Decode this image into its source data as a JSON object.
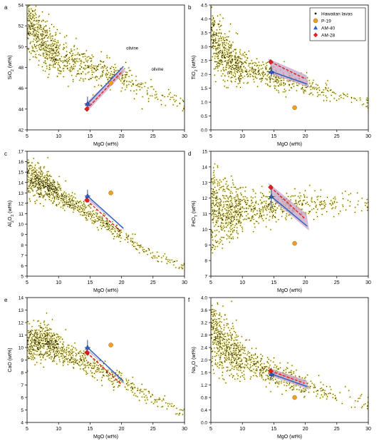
{
  "chart_data": [
    {
      "type": "scatter",
      "panel_label": "a",
      "xlabel": "MgO (wt%)",
      "ylabel": "SiO2 (wt%)",
      "xlim": [
        5,
        30
      ],
      "ylim": [
        42,
        54
      ],
      "xticks": [
        5,
        10,
        15,
        20,
        25,
        30
      ],
      "yticks": [
        42,
        44,
        46,
        48,
        50,
        52,
        54
      ],
      "cloud": [
        [
          5,
          52.0,
          0.15
        ],
        [
          6,
          51.6,
          0.15
        ],
        [
          7,
          51.0,
          0.14
        ],
        [
          8,
          50.2,
          0.14
        ],
        [
          9,
          49.6,
          0.13
        ],
        [
          10,
          49.0,
          0.12
        ],
        [
          12,
          48.6,
          0.11
        ],
        [
          14,
          48.2,
          0.1
        ],
        [
          16,
          47.9,
          0.08
        ],
        [
          18,
          47.4,
          0.07
        ],
        [
          20,
          47.0,
          0.06
        ],
        [
          22,
          46.6,
          0.05
        ],
        [
          25,
          45.6,
          0.04
        ],
        [
          30,
          44.2,
          0.02
        ]
      ],
      "cloud_spread": [
        [
          5,
          2.8
        ],
        [
          8,
          2.8
        ],
        [
          12,
          2.2
        ],
        [
          18,
          1.5
        ],
        [
          25,
          1.2
        ],
        [
          30,
          1.0
        ]
      ],
      "p19": [
        18.3,
        46.5
      ],
      "am40": [
        14.6,
        44.5
      ],
      "am40_err": 0.7,
      "am28": [
        14.5,
        44.0
      ],
      "line_am40": [
        [
          14.6,
          44.5
        ],
        [
          20.3,
          48.1
        ]
      ],
      "line_am28": [
        [
          14.5,
          44.0
        ],
        [
          19.9,
          47.5
        ]
      ],
      "band_halfwidth": 0.45,
      "annotations": [
        {
          "text": "olivine",
          "x": 21.7,
          "y": 49.7
        },
        {
          "text": "olivine",
          "x": 25.7,
          "y": 47.7
        }
      ]
    },
    {
      "type": "scatter",
      "panel_label": "b",
      "xlabel": "MgO (wt%)",
      "ylabel": "TiO2 (wt%)",
      "xlim": [
        5,
        30
      ],
      "ylim": [
        0,
        4.5
      ],
      "xticks": [
        5,
        10,
        15,
        20,
        25,
        30
      ],
      "yticks": [
        0,
        0.5,
        1.0,
        1.5,
        2.0,
        2.5,
        3.0,
        3.5,
        4.0,
        4.5
      ],
      "cloud": [
        [
          5,
          3.5,
          0.17
        ],
        [
          6,
          3.05,
          0.16
        ],
        [
          7,
          2.7,
          0.15
        ],
        [
          8,
          2.5,
          0.14
        ],
        [
          9,
          2.35,
          0.13
        ],
        [
          10,
          2.25,
          0.12
        ],
        [
          12,
          2.1,
          0.11
        ],
        [
          14,
          2.0,
          0.1
        ],
        [
          16,
          1.85,
          0.08
        ],
        [
          18,
          1.7,
          0.06
        ],
        [
          20,
          1.55,
          0.05
        ],
        [
          22,
          1.45,
          0.04
        ],
        [
          25,
          1.25,
          0.03
        ],
        [
          30,
          0.95,
          0.02
        ]
      ],
      "cloud_spread": [
        [
          5,
          1.4
        ],
        [
          8,
          0.9
        ],
        [
          12,
          0.6
        ],
        [
          18,
          0.45
        ],
        [
          25,
          0.35
        ],
        [
          30,
          0.3
        ]
      ],
      "p19": [
        18.3,
        0.8
      ],
      "am40": [
        14.6,
        2.1
      ],
      "am40_err": 0.18,
      "am28": [
        14.5,
        2.45
      ],
      "line_am40": [
        [
          14.6,
          2.1
        ],
        [
          20.3,
          1.65
        ]
      ],
      "line_am28": [
        [
          14.5,
          2.45
        ],
        [
          19.9,
          1.85
        ]
      ],
      "band_halfwidth": 0.12
    },
    {
      "type": "scatter",
      "panel_label": "c",
      "xlabel": "MgO (wt%)",
      "ylabel": "Al2O3 (wt%)",
      "xlim": [
        5,
        30
      ],
      "ylim": [
        5,
        17
      ],
      "xticks": [
        5,
        10,
        15,
        20,
        25,
        30
      ],
      "yticks": [
        5,
        6,
        7,
        8,
        9,
        10,
        11,
        12,
        13,
        14,
        15,
        16,
        17
      ],
      "cloud": [
        [
          5,
          14.6,
          0.15
        ],
        [
          6,
          14.3,
          0.15
        ],
        [
          7,
          14.0,
          0.14
        ],
        [
          8,
          13.7,
          0.14
        ],
        [
          9,
          13.3,
          0.13
        ],
        [
          10,
          12.9,
          0.12
        ],
        [
          12,
          12.1,
          0.11
        ],
        [
          14,
          11.4,
          0.1
        ],
        [
          16,
          10.6,
          0.08
        ],
        [
          18,
          9.8,
          0.07
        ],
        [
          20,
          9.0,
          0.06
        ],
        [
          22,
          8.2,
          0.05
        ],
        [
          25,
          7.0,
          0.04
        ],
        [
          30,
          5.8,
          0.02
        ]
      ],
      "cloud_spread": [
        [
          5,
          2.2
        ],
        [
          8,
          1.6
        ],
        [
          12,
          1.0
        ],
        [
          18,
          0.8
        ],
        [
          25,
          0.7
        ],
        [
          30,
          0.6
        ]
      ],
      "p19": [
        18.3,
        13.0
      ],
      "am40": [
        14.6,
        12.7
      ],
      "am40_err": 0.6,
      "am28": [
        14.5,
        12.3
      ],
      "line_am40": [
        [
          14.6,
          12.7
        ],
        [
          20.3,
          9.6
        ]
      ],
      "line_am28": [
        [
          14.5,
          12.3
        ],
        [
          19.9,
          9.3
        ]
      ],
      "band_halfwidth": 0.3
    },
    {
      "type": "scatter",
      "panel_label": "d",
      "xlabel": "MgO (wt%)",
      "ylabel": "FeOT (wt%)",
      "xlim": [
        5,
        30
      ],
      "ylim": [
        7,
        15
      ],
      "xticks": [
        5,
        10,
        15,
        20,
        25,
        30
      ],
      "yticks": [
        7,
        8,
        9,
        10,
        11,
        12,
        13,
        14,
        15
      ],
      "cloud": [
        [
          5,
          11.4,
          0.2
        ],
        [
          6,
          11.2,
          0.16
        ],
        [
          7,
          11.1,
          0.15
        ],
        [
          8,
          11.1,
          0.14
        ],
        [
          9,
          11.2,
          0.13
        ],
        [
          10,
          11.2,
          0.12
        ],
        [
          12,
          11.3,
          0.11
        ],
        [
          14,
          11.4,
          0.1
        ],
        [
          16,
          11.5,
          0.09
        ],
        [
          18,
          11.6,
          0.08
        ],
        [
          20,
          11.6,
          0.07
        ],
        [
          22,
          11.6,
          0.06
        ],
        [
          25,
          11.6,
          0.04
        ],
        [
          30,
          11.6,
          0.02
        ]
      ],
      "cloud_spread": [
        [
          5,
          3.4
        ],
        [
          7,
          2.2
        ],
        [
          12,
          1.3
        ],
        [
          18,
          1.0
        ],
        [
          25,
          0.8
        ],
        [
          30,
          0.7
        ]
      ],
      "p19": [
        18.3,
        9.1
      ],
      "am40": [
        14.6,
        12.1
      ],
      "am40_err": 0.7,
      "am28": [
        14.5,
        12.7
      ],
      "line_am40": [
        [
          14.6,
          12.1
        ],
        [
          20.3,
          10.2
        ]
      ],
      "line_am28": [
        [
          14.5,
          12.7
        ],
        [
          19.9,
          10.7
        ]
      ],
      "band_halfwidth": 0.28
    },
    {
      "type": "scatter",
      "panel_label": "e",
      "xlabel": "MgO (wt%)",
      "ylabel": "CaO (wt%)",
      "xlim": [
        5,
        30
      ],
      "ylim": [
        4,
        14
      ],
      "xticks": [
        5,
        10,
        15,
        20,
        25,
        30
      ],
      "yticks": [
        4,
        5,
        6,
        7,
        8,
        9,
        10,
        11,
        12,
        13,
        14
      ],
      "cloud": [
        [
          5,
          10.2,
          0.15
        ],
        [
          6,
          10.4,
          0.15
        ],
        [
          7,
          10.5,
          0.15
        ],
        [
          8,
          10.4,
          0.14
        ],
        [
          9,
          10.2,
          0.13
        ],
        [
          10,
          9.9,
          0.12
        ],
        [
          12,
          9.4,
          0.11
        ],
        [
          14,
          8.9,
          0.1
        ],
        [
          16,
          8.4,
          0.08
        ],
        [
          18,
          7.8,
          0.07
        ],
        [
          20,
          7.3,
          0.06
        ],
        [
          22,
          6.7,
          0.05
        ],
        [
          25,
          5.9,
          0.04
        ],
        [
          30,
          4.7,
          0.02
        ]
      ],
      "cloud_spread": [
        [
          5,
          1.8
        ],
        [
          8,
          1.6
        ],
        [
          12,
          1.1
        ],
        [
          18,
          0.9
        ],
        [
          25,
          0.8
        ],
        [
          30,
          0.7
        ]
      ],
      "p19": [
        18.3,
        10.2
      ],
      "am40": [
        14.6,
        10.0
      ],
      "am40_err": 0.6,
      "am28": [
        14.5,
        9.6
      ],
      "line_am40": [
        [
          14.6,
          10.0
        ],
        [
          20.3,
          7.3
        ]
      ],
      "line_am28": [
        [
          14.5,
          9.6
        ],
        [
          19.9,
          7.1
        ]
      ],
      "band_halfwidth": 0.3
    },
    {
      "type": "scatter",
      "panel_label": "f",
      "xlabel": "MgO (wt%)",
      "ylabel": "Na2O (wt%)",
      "xlim": [
        5,
        30
      ],
      "ylim": [
        0,
        4.0
      ],
      "xticks": [
        5,
        10,
        15,
        20,
        25,
        30
      ],
      "yticks": [
        0,
        0.4,
        0.8,
        1.2,
        1.6,
        2.0,
        2.4,
        2.8,
        3.2,
        3.6,
        4.0
      ],
      "cloud": [
        [
          5,
          2.9,
          0.17
        ],
        [
          6,
          2.7,
          0.16
        ],
        [
          7,
          2.5,
          0.15
        ],
        [
          8,
          2.35,
          0.14
        ],
        [
          9,
          2.2,
          0.13
        ],
        [
          10,
          2.05,
          0.12
        ],
        [
          12,
          1.85,
          0.11
        ],
        [
          14,
          1.65,
          0.1
        ],
        [
          16,
          1.5,
          0.08
        ],
        [
          18,
          1.35,
          0.07
        ],
        [
          20,
          1.2,
          0.06
        ],
        [
          22,
          1.05,
          0.05
        ],
        [
          25,
          0.85,
          0.03
        ],
        [
          30,
          0.6,
          0.02
        ]
      ],
      "cloud_spread": [
        [
          5,
          1.2
        ],
        [
          8,
          0.9
        ],
        [
          12,
          0.55
        ],
        [
          18,
          0.45
        ],
        [
          25,
          0.35
        ],
        [
          30,
          0.3
        ]
      ],
      "p19": [
        18.3,
        0.8
      ],
      "am40": [
        14.6,
        1.55
      ],
      "am40_err": 0.2,
      "am28": [
        14.5,
        1.65
      ],
      "line_am40": [
        [
          14.6,
          1.55
        ],
        [
          20.3,
          1.15
        ]
      ],
      "line_am28": [
        [
          14.5,
          1.65
        ],
        [
          19.9,
          1.25
        ]
      ],
      "band_halfwidth": 0.1
    }
  ],
  "ylabel_parts": {
    "a": [
      "SiO",
      "2",
      " (wt%)"
    ],
    "b": [
      "TiO",
      "2",
      " (wt%)"
    ],
    "c": [
      "Al",
      "2",
      "O",
      "3",
      " (wt%)"
    ],
    "d": [
      "FeO",
      "T",
      " (wt%)"
    ],
    "e": [
      "CaO (wt%)"
    ],
    "f": [
      "Na",
      "2",
      "O (wt%)"
    ]
  },
  "legend": {
    "panel": "b",
    "items": [
      {
        "label": "Hawaiian lavas",
        "marker": "dot",
        "color": "#1a1a00"
      },
      {
        "label": "P-19",
        "marker": "circle",
        "color": "#f0a020"
      },
      {
        "label": "AM-40",
        "marker": "triangle",
        "color": "#2b5fc0"
      },
      {
        "label": "AM-28",
        "marker": "diamond",
        "color": "#e02020"
      }
    ]
  },
  "colors": {
    "cloud_dot": "#2a2400",
    "cloud_halo": "#f4f09a",
    "band_fill": "#c7a3c8",
    "line_am40": "#2b5fc0",
    "line_am28": "#e02020",
    "p19": "#f0a020"
  }
}
